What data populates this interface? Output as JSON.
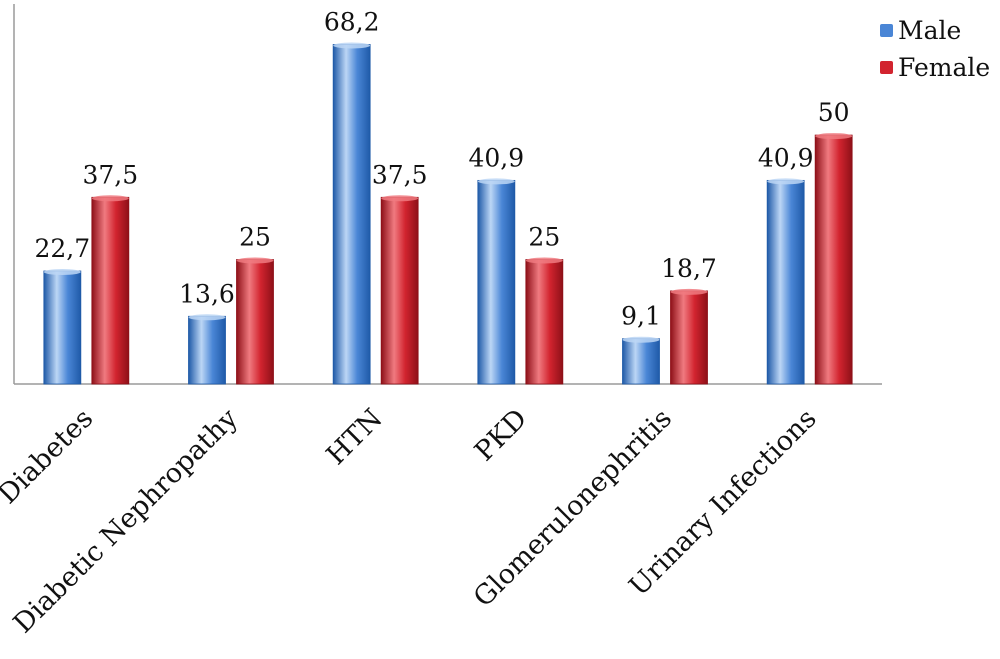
{
  "colors": {
    "male": "#4a86d6",
    "male_dark": "#1f5aa8",
    "male_light": "#bcd6f5",
    "female": "#d2242f",
    "female_dark": "#8e1018",
    "female_light": "#f07a80",
    "axis": "#9a9a9a",
    "text": "#111111"
  },
  "chart_data": {
    "type": "bar",
    "categories": [
      "Diabetes",
      "Diabetic Nephropathy",
      "HTN",
      "PKD",
      "Glomerulonephritis",
      "Urinary Infections"
    ],
    "series": [
      {
        "name": "Male",
        "values": [
          22.7,
          13.6,
          68.2,
          40.9,
          9.1,
          40.9
        ],
        "labels": [
          "22,7",
          "13,6",
          "68,2",
          "40,9",
          "9,1",
          "40,9"
        ]
      },
      {
        "name": "Female",
        "values": [
          37.5,
          25,
          37.5,
          25,
          18.7,
          50
        ],
        "labels": [
          "37,5",
          "25",
          "37,5",
          "25",
          "18,7",
          "50"
        ]
      }
    ],
    "ylim": [
      0,
      70
    ],
    "grid": false,
    "legend_position": "top-right"
  }
}
